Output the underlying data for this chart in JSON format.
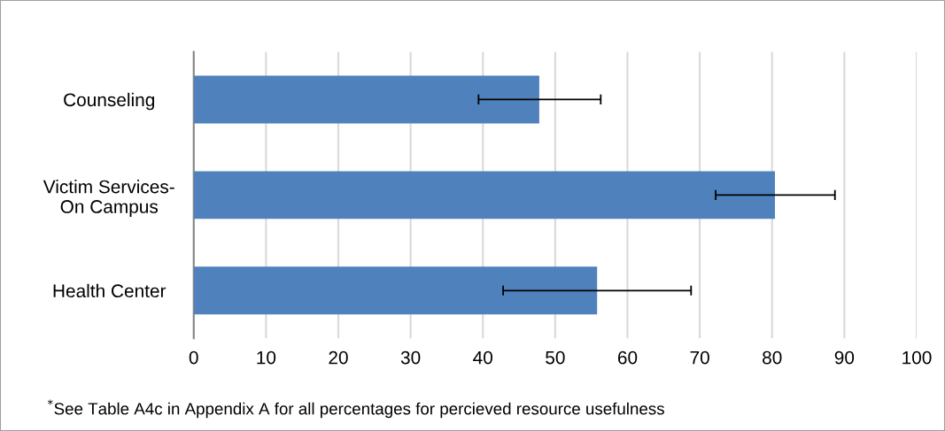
{
  "chart_data": {
    "type": "bar",
    "orientation": "horizontal",
    "categories": [
      "Counseling",
      "Victim Services-\nOn Campus",
      "Health Center"
    ],
    "values": [
      47.8,
      80.4,
      55.8
    ],
    "errors": [
      [
        39.4,
        56.3
      ],
      [
        72.2,
        88.7
      ],
      [
        42.8,
        68.8
      ]
    ],
    "color": "#4f81bd",
    "xlim": [
      0,
      100
    ],
    "xticks": [
      0,
      10,
      20,
      30,
      40,
      50,
      60,
      70,
      80,
      90,
      100
    ],
    "grid": "x",
    "annotations": [
      "$^{*}$See Table A4c in Appendix A for all percentages for percieved resource usefulness"
    ]
  }
}
